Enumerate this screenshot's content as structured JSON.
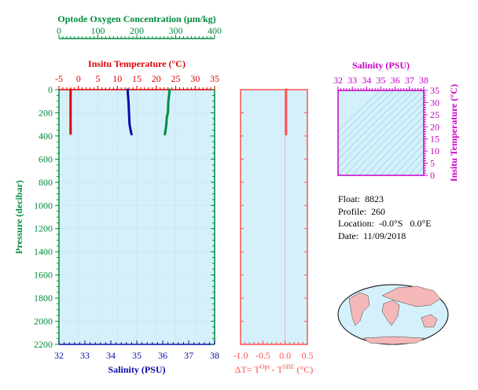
{
  "colors": {
    "background": "#d4f1fb",
    "oxygen": "#008c3c",
    "temperature": "#e00000",
    "salinity": "#0a0aa8",
    "delta": "#ff5050",
    "ts_axis": "#c800c8",
    "pressure_axis": "#008c3c"
  },
  "info": {
    "float": "Float:  8823",
    "profile": "Profile:  260",
    "location": "Location:  -0.0°S   0.0°E",
    "date": "Date:  11/09/2018"
  },
  "chart_data": [
    {
      "type": "line",
      "name": "main-profile",
      "ylabel": "Pressure (decibar)",
      "ylim": [
        2200,
        0
      ],
      "yticks": [
        "0",
        "200",
        "400",
        "600",
        "800",
        "1000",
        "1200",
        "1400",
        "1600",
        "1800",
        "2000",
        "2200"
      ],
      "yticks_values": [
        0,
        200,
        400,
        600,
        800,
        1000,
        1200,
        1400,
        1600,
        1800,
        2000,
        2200
      ],
      "axes": {
        "oxygen": {
          "label": "Optode Oxygen Concentration (µm/kg)",
          "lim": [
            0,
            400
          ],
          "ticks": [
            "0",
            "100",
            "200",
            "300",
            "400"
          ],
          "tick_values": [
            0,
            100,
            200,
            300,
            400
          ]
        },
        "temperature": {
          "label": "Insitu Temperature (°C)",
          "lim": [
            -5,
            35
          ],
          "ticks": [
            "-5",
            "0",
            "5",
            "10",
            "15",
            "20",
            "25",
            "30",
            "35"
          ],
          "tick_values": [
            -5,
            0,
            5,
            10,
            15,
            20,
            25,
            30,
            35
          ]
        },
        "salinity": {
          "label": "Salinity (PSU)",
          "lim": [
            32,
            38
          ],
          "ticks": [
            "32",
            "33",
            "34",
            "35",
            "36",
            "37",
            "38"
          ],
          "tick_values": [
            32,
            33,
            34,
            35,
            36,
            37,
            38
          ]
        }
      },
      "series": [
        {
          "axis": "temperature",
          "points": [
            [
              -2.0,
              0
            ],
            [
              -2.0,
              50
            ],
            [
              -2.0,
              100
            ],
            [
              -2.0,
              200
            ],
            [
              -2.0,
              300
            ],
            [
              -2.0,
              380
            ]
          ]
        },
        {
          "axis": "salinity",
          "points": [
            [
              34.65,
              0
            ],
            [
              34.66,
              50
            ],
            [
              34.68,
              100
            ],
            [
              34.7,
              200
            ],
            [
              34.72,
              300
            ],
            [
              34.78,
              370
            ],
            [
              34.8,
              385
            ]
          ]
        },
        {
          "axis": "oxygen",
          "points": [
            [
              284,
              0
            ],
            [
              283,
              50
            ],
            [
              281,
              100
            ],
            [
              280,
              200
            ],
            [
              277,
              240
            ],
            [
              276,
              300
            ],
            [
              273,
              370
            ],
            [
              272,
              385
            ]
          ]
        }
      ]
    },
    {
      "type": "line",
      "name": "delta-t",
      "xlabel": "ΔT= T^Opt - T^SBE (°C)",
      "xlabel_main": "ΔT= T",
      "xlabel_sup1": "Opt",
      "xlabel_mid": " - T",
      "xlabel_sup2": "SBE",
      "xlabel_end": " (°C)",
      "xlim": [
        -1.0,
        0.5
      ],
      "xticks": [
        "-1.0",
        "-0.5",
        "0.0",
        "0.5"
      ],
      "xticks_values": [
        -1.0,
        -0.5,
        0.0,
        0.5
      ],
      "ylim": [
        2200,
        0
      ],
      "zero_line": 0.0,
      "points": [
        [
          0.02,
          0
        ],
        [
          0.02,
          100
        ],
        [
          0.02,
          200
        ],
        [
          0.02,
          300
        ],
        [
          0.02,
          385
        ]
      ]
    },
    {
      "type": "scatter",
      "name": "ts-diagram",
      "xlabel": "Salinity (PSU)",
      "ylabel": "Insitu Temperature (°C)",
      "xlim": [
        32,
        38
      ],
      "ylim": [
        0,
        35
      ],
      "xticks": [
        "32",
        "33",
        "34",
        "35",
        "36",
        "37",
        "38"
      ],
      "xticks_values": [
        32,
        33,
        34,
        35,
        36,
        37,
        38
      ],
      "yticks": [
        "0",
        "5",
        "10",
        "15",
        "20",
        "25",
        "30",
        "35"
      ],
      "yticks_values": [
        0,
        5,
        10,
        15,
        20,
        25,
        30,
        35
      ],
      "points": []
    }
  ]
}
